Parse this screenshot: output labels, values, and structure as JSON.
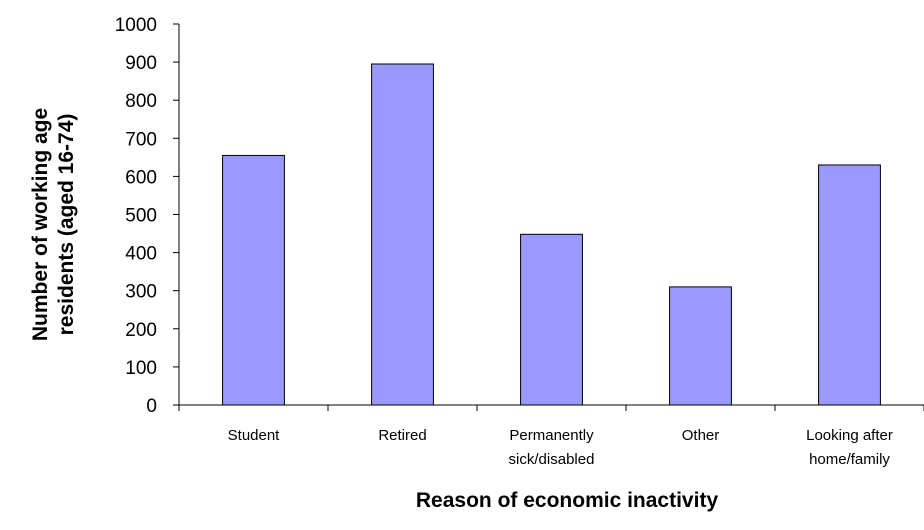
{
  "chart_data": {
    "type": "bar",
    "title": "",
    "xlabel": "Reason of economic inactivity",
    "ylabel": "Number of working age residents (aged 16-74)",
    "ylabel_lines": [
      "Number of working age",
      "residents (aged 16-74)"
    ],
    "categories": [
      "Student",
      "Retired",
      "Permanently sick/disabled",
      "Other",
      "Looking after home/family"
    ],
    "category_label_lines": [
      [
        "Student"
      ],
      [
        "Retired"
      ],
      [
        "Permanently",
        "sick/disabled"
      ],
      [
        "Other"
      ],
      [
        "Looking after",
        "home/family"
      ]
    ],
    "values": [
      655,
      895,
      448,
      310,
      630
    ],
    "ylim": [
      0,
      1000
    ],
    "yticks": [
      0,
      100,
      200,
      300,
      400,
      500,
      600,
      700,
      800,
      900,
      1000
    ],
    "grid": false,
    "legend": "none",
    "colors": {
      "bar_fill": "#9999ff",
      "bar_stroke": "#000000",
      "axis": "#000000"
    }
  }
}
